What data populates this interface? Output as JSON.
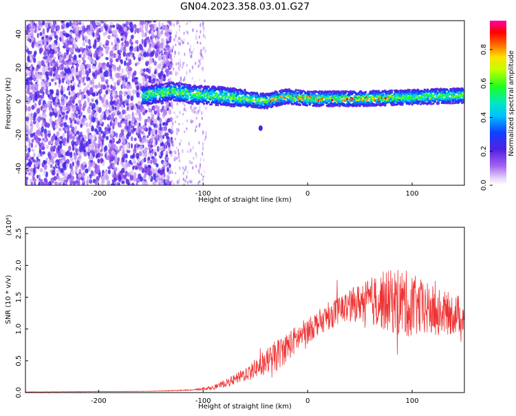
{
  "title": "GN04.2023.358.03.01.G27",
  "colors": {
    "snr_line": "#ee3333",
    "axis": "#000000"
  },
  "chart_data": [
    {
      "type": "heatmap",
      "name": "spectrogram",
      "xlabel": "Height of straight line (km)",
      "ylabel": "Frequency (Hz)",
      "xlim": [
        -270,
        150
      ],
      "ylim": [
        -50,
        48
      ],
      "xticks": [
        -200,
        -100,
        0,
        100
      ],
      "yticks": [
        -40,
        -20,
        0,
        20,
        40
      ],
      "colorbar": {
        "label": "Normalized spectral amplitude",
        "range": [
          0,
          0.97
        ],
        "ticks": [
          0.0,
          0.2,
          0.4,
          0.6,
          0.8
        ],
        "colormap": "rainbow (purple-blue-cyan-green-yellow-red-magenta)"
      },
      "features": {
        "noise_region_x": [
          -270,
          -130
        ],
        "scattered_noise_x": [
          -130,
          -97
        ],
        "signal_band_start_x": -158,
        "signal_band_center_freq": [
          [
            -158,
            3
          ],
          [
            -130,
            6
          ],
          [
            -110,
            4
          ],
          [
            -80,
            3
          ],
          [
            -60,
            1.5
          ],
          [
            -40,
            0
          ],
          [
            -20,
            3
          ],
          [
            0,
            1.5
          ],
          [
            50,
            1.5
          ],
          [
            100,
            2.5
          ],
          [
            150,
            3.5
          ]
        ],
        "isolated_blob": [
          -45,
          -16
        ]
      }
    },
    {
      "type": "line",
      "name": "snr",
      "xlabel": "Height of straight line (km)",
      "ylabel": "SNR (10 * v/v)",
      "y_scale_label": "(x10⁴)",
      "xlim": [
        -270,
        150
      ],
      "ylim": [
        0,
        2.6
      ],
      "xticks": [
        -200,
        -100,
        0,
        100
      ],
      "yticks": [
        0.0,
        0.5,
        1.0,
        1.5,
        2.0,
        2.5
      ],
      "envelope": {
        "x": [
          -270,
          -150,
          -110,
          -90,
          -70,
          -50,
          -30,
          -10,
          10,
          30,
          50,
          70,
          90,
          110,
          130,
          150
        ],
        "y": [
          0.01,
          0.02,
          0.04,
          0.08,
          0.2,
          0.38,
          0.58,
          0.85,
          1.1,
          1.3,
          1.42,
          1.45,
          1.42,
          1.32,
          1.25,
          1.22
        ],
        "noise_amplitude": [
          0.002,
          0.003,
          0.01,
          0.03,
          0.08,
          0.15,
          0.25,
          0.22,
          0.2,
          0.22,
          0.3,
          0.45,
          0.55,
          0.45,
          0.35,
          0.3
        ]
      }
    }
  ]
}
